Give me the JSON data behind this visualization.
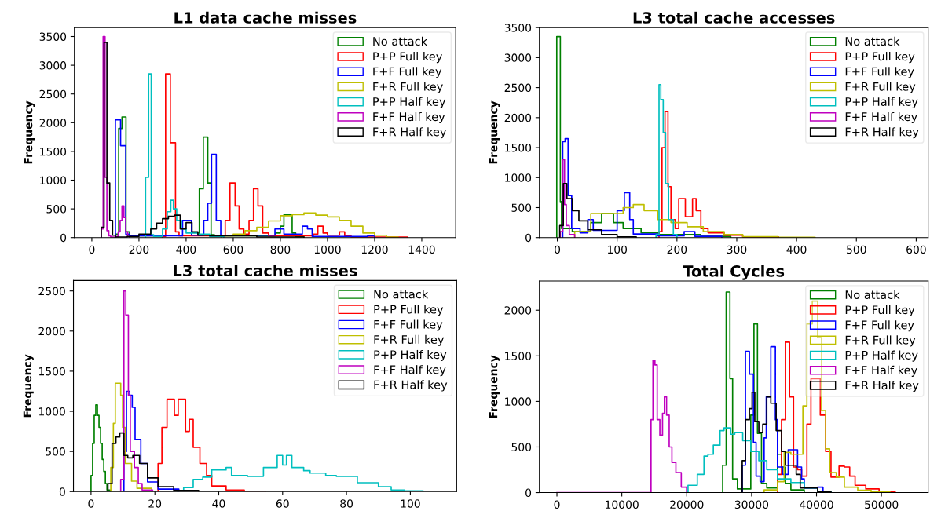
{
  "chart_data": [
    {
      "type": "step",
      "title": "L1 data cache misses",
      "ylabel": "Frequency",
      "xlim": [
        -74,
        1544
      ],
      "ylim": [
        0,
        3655
      ],
      "xticks": [
        0,
        200,
        400,
        600,
        800,
        1000,
        1200,
        1400
      ],
      "yticks": [
        0,
        500,
        1000,
        1500,
        2000,
        2500,
        3000,
        3500
      ],
      "legend": "top right",
      "series": [
        {
          "name": "No attack",
          "color": "#008000",
          "x": [
            100,
            100,
            114,
            128,
            145,
            160,
            300,
            456,
            473,
            492,
            506,
            520,
            780,
            800,
            815,
            850,
            865,
            900
          ],
          "values": [
            0,
            60,
            1900,
            2100,
            100,
            30,
            40,
            850,
            1750,
            950,
            50,
            30,
            80,
            200,
            400,
            80,
            20,
            0
          ]
        },
        {
          "name": "P+P Full key",
          "color": "#ff0000",
          "x": [
            300,
            300,
            313,
            333,
            355,
            370,
            566,
            586,
            608,
            625,
            645,
            667,
            686,
            705,
            725,
            750,
            940,
            959,
            981,
            1000,
            1051,
            1073,
            1100,
            1340
          ],
          "values": [
            0,
            20,
            2850,
            1650,
            100,
            30,
            300,
            950,
            550,
            150,
            60,
            300,
            850,
            550,
            80,
            30,
            60,
            200,
            80,
            40,
            100,
            30,
            10,
            0
          ]
        },
        {
          "name": "F+F Full key",
          "color": "#0000ff",
          "x": [
            100,
            100,
            122,
            144,
            160,
            385,
            423,
            475,
            492,
            508,
            528,
            547,
            777,
            815,
            893,
            915,
            935,
            1170,
            1200
          ],
          "values": [
            0,
            2050,
            1600,
            60,
            30,
            300,
            40,
            300,
            600,
            1450,
            300,
            40,
            150,
            60,
            200,
            150,
            20,
            30,
            0
          ]
        },
        {
          "name": "F+R Full key",
          "color": "#bfbf00",
          "x": [
            550,
            550,
            600,
            650,
            700,
            750,
            800,
            850,
            900,
            950,
            1000,
            1050,
            1100,
            1150,
            1200,
            1250,
            1300
          ],
          "values": [
            0,
            30,
            60,
            120,
            180,
            290,
            380,
            400,
            430,
            390,
            360,
            300,
            200,
            80,
            40,
            10,
            0
          ]
        },
        {
          "name": "P+P Half key",
          "color": "#00bfbf",
          "x": [
            228,
            228,
            241,
            252,
            262,
            300,
            320,
            335,
            346,
            360,
            380,
            400,
            450,
            500,
            560
          ],
          "values": [
            0,
            1050,
            2850,
            50,
            20,
            150,
            450,
            650,
            500,
            300,
            150,
            80,
            60,
            20,
            0
          ]
        },
        {
          "name": "F+F Half key",
          "color": "#bf00bf",
          "x": [
            40,
            40,
            48,
            56,
            64,
            72,
            80,
            88,
            96,
            104,
            112,
            120,
            128,
            136,
            144,
            152,
            160
          ],
          "values": [
            0,
            150,
            3500,
            1050,
            120,
            30,
            10,
            10,
            10,
            20,
            100,
            300,
            550,
            350,
            100,
            20,
            0
          ]
        },
        {
          "name": "F+R Half key",
          "color": "#000000",
          "x": [
            40,
            40,
            52,
            64,
            76,
            88,
            100,
            150,
            200,
            250,
            275,
            300,
            325,
            350,
            375,
            400,
            425,
            450,
            500,
            700,
            900
          ],
          "values": [
            0,
            180,
            3400,
            950,
            300,
            40,
            10,
            20,
            60,
            150,
            250,
            330,
            370,
            390,
            150,
            260,
            100,
            40,
            30,
            10,
            0
          ]
        }
      ]
    },
    {
      "type": "step",
      "title": "L3 total cache accesses",
      "ylabel": "Frequency",
      "xlim": [
        -30,
        620
      ],
      "ylim": [
        0,
        3500
      ],
      "xticks": [
        0,
        100,
        200,
        300,
        400,
        500,
        600
      ],
      "yticks": [
        0,
        500,
        1000,
        1500,
        2000,
        2500,
        3000,
        3500
      ],
      "legend": "top right",
      "series": [
        {
          "name": "No attack",
          "color": "#008000",
          "x": [
            -1,
            -1,
            5,
            7,
            25,
            56,
            74,
            94,
            110,
            140,
            170,
            240,
            290
          ],
          "values": [
            0,
            3350,
            600,
            150,
            100,
            250,
            400,
            250,
            150,
            80,
            50,
            20,
            0
          ]
        },
        {
          "name": "P+P Full key",
          "color": "#ff0000",
          "x": [
            170,
            170,
            175,
            180,
            185,
            190,
            197,
            203,
            214,
            226,
            232,
            240,
            252,
            279,
            310,
            370
          ],
          "values": [
            0,
            100,
            1500,
            2100,
            850,
            300,
            150,
            650,
            350,
            650,
            450,
            150,
            80,
            40,
            10,
            0
          ]
        },
        {
          "name": "F+F Full key",
          "color": "#0000ff",
          "x": [
            9,
            9,
            13,
            18,
            24,
            38,
            51,
            60,
            100,
            112,
            121,
            127,
            168,
            212,
            230,
            275
          ],
          "values": [
            0,
            1600,
            1650,
            700,
            150,
            80,
            300,
            120,
            450,
            750,
            300,
            60,
            30,
            100,
            20,
            0
          ]
        },
        {
          "name": "F+R Full key",
          "color": "#bfbf00",
          "x": [
            29,
            29,
            56,
            78,
            110,
            127,
            145,
            168,
            190,
            217,
            244,
            279,
            310,
            369,
            431
          ],
          "values": [
            0,
            100,
            400,
            400,
            500,
            550,
            450,
            300,
            250,
            180,
            100,
            50,
            15,
            5,
            0
          ]
        },
        {
          "name": "P+P Half key",
          "color": "#00bfbf",
          "x": [
            165,
            165,
            170,
            173,
            177,
            181,
            186,
            194,
            200
          ],
          "values": [
            0,
            50,
            2550,
            2300,
            1750,
            900,
            300,
            50,
            0
          ]
        },
        {
          "name": "F+F Half key",
          "color": "#bf00bf",
          "x": [
            5,
            5,
            9,
            12,
            15,
            20,
            29
          ],
          "values": [
            0,
            100,
            1300,
            550,
            200,
            50,
            0
          ]
        },
        {
          "name": "F+R Half key",
          "color": "#000000",
          "x": [
            4,
            4,
            10,
            16,
            25,
            36,
            51,
            74,
            100,
            132
          ],
          "values": [
            0,
            200,
            900,
            650,
            450,
            280,
            130,
            50,
            10,
            0
          ]
        }
      ]
    },
    {
      "type": "step",
      "title": "L3 total cache misses",
      "ylabel": "Frequency",
      "xlim": [
        -5.5,
        114.5
      ],
      "ylim": [
        0,
        2630
      ],
      "xticks": [
        0,
        20,
        40,
        60,
        80,
        100
      ],
      "yticks": [
        0,
        500,
        1000,
        1500,
        2000,
        2500
      ],
      "legend": "top right",
      "series": [
        {
          "name": "No attack",
          "color": "#008000",
          "x": [
            0,
            0,
            0.5,
            1,
            1.5,
            2,
            2.5,
            3,
            3.5,
            4,
            4.5,
            5,
            6
          ],
          "values": [
            0,
            200,
            600,
            950,
            1080,
            950,
            800,
            600,
            400,
            250,
            100,
            20,
            0
          ]
        },
        {
          "name": "P+P Full key",
          "color": "#ff0000",
          "x": [
            21,
            21,
            22.2,
            23.8,
            26.1,
            27.3,
            29.6,
            30.8,
            32,
            34.1,
            36.2,
            37.8,
            42.3,
            48,
            54.6
          ],
          "values": [
            0,
            350,
            800,
            1150,
            950,
            1150,
            750,
            900,
            550,
            350,
            200,
            70,
            20,
            5,
            0
          ]
        },
        {
          "name": "F+F Full key",
          "color": "#0000ff",
          "x": [
            10.3,
            10.3,
            11.1,
            12.1,
            12.9,
            13.8,
            14.8,
            15.6,
            17.7,
            21,
            27.5
          ],
          "values": [
            0,
            500,
            1250,
            1200,
            1050,
            650,
            650,
            350,
            120,
            30,
            0
          ]
        },
        {
          "name": "F+R Full key",
          "color": "#bfbf00",
          "x": [
            6.2,
            6.2,
            7,
            7.6,
            8.5,
            9.3,
            9.9,
            10.7,
            12.7,
            14.4,
            19
          ],
          "values": [
            0,
            300,
            850,
            1350,
            1350,
            1200,
            800,
            350,
            130,
            40,
            0
          ]
        },
        {
          "name": "P+P Half key",
          "color": "#00bfbf",
          "x": [
            27,
            27,
            29,
            32,
            35,
            37.8,
            42.3,
            44,
            49,
            54,
            58.3,
            60,
            61.2,
            62.9,
            66.6,
            68.6,
            73.5,
            76.8,
            83.4,
            90,
            94,
            98.2,
            104
          ],
          "values": [
            0,
            10,
            50,
            150,
            180,
            270,
            300,
            200,
            190,
            300,
            450,
            330,
            450,
            300,
            260,
            230,
            200,
            190,
            110,
            60,
            20,
            10,
            0
          ]
        },
        {
          "name": "F+F Half key",
          "color": "#bf00bf",
          "x": [
            9.3,
            9.3,
            10.3,
            10.9,
            11.7,
            12.3,
            13.6,
            14.8,
            16,
            19.3
          ],
          "values": [
            0,
            150,
            2500,
            2200,
            1200,
            500,
            300,
            100,
            20,
            0
          ]
        },
        {
          "name": "F+R Half key",
          "color": "#000000",
          "x": [
            5.3,
            5.3,
            6.6,
            7.8,
            9,
            10.3,
            11.5,
            13.1,
            15.2,
            17.7,
            21,
            25.9,
            33.7
          ],
          "values": [
            0,
            100,
            600,
            680,
            730,
            450,
            420,
            450,
            350,
            170,
            60,
            15,
            0
          ]
        }
      ]
    },
    {
      "type": "step",
      "title": "Total Cycles",
      "ylabel": "Frequency",
      "xlim": [
        -2700,
        57200
      ],
      "ylim": [
        0,
        2320
      ],
      "xticks": [
        0,
        10000,
        20000,
        30000,
        40000,
        50000
      ],
      "yticks": [
        0,
        500,
        1000,
        1500,
        2000
      ],
      "legend": "top right",
      "series": [
        {
          "name": "No attack",
          "color": "#008000",
          "x": [
            25540,
            25540,
            26080,
            26660,
            27070,
            27810,
            29870,
            30360,
            30900,
            31520,
            32340,
            33990,
            34610,
            35230,
            36050,
            38110
          ],
          "values": [
            0,
            300,
            2200,
            1250,
            150,
            40,
            850,
            1850,
            650,
            100,
            50,
            420,
            280,
            100,
            30,
            0
          ]
        },
        {
          "name": "P+P Full key",
          "color": "#ff0000",
          "x": [
            34000,
            34000,
            34610,
            35230,
            35840,
            36460,
            37080,
            37700,
            38520,
            39140,
            39760,
            40580,
            41410,
            42230,
            43470,
            44290,
            45110,
            45940,
            47590,
            49640,
            52120
          ],
          "values": [
            0,
            200,
            800,
            1650,
            1050,
            280,
            250,
            180,
            750,
            1250,
            1250,
            850,
            450,
            170,
            290,
            280,
            180,
            80,
            40,
            10,
            0
          ]
        },
        {
          "name": "F+F Full key",
          "color": "#0000ff",
          "x": [
            28550,
            28550,
            29050,
            29660,
            30280,
            30690,
            31310,
            31930,
            32260,
            32960,
            33660,
            33990,
            34810,
            35640,
            37080,
            37700,
            38110,
            40170,
            41000
          ],
          "values": [
            0,
            300,
            1550,
            1300,
            550,
            180,
            120,
            600,
            1050,
            1600,
            800,
            280,
            200,
            470,
            280,
            150,
            50,
            60,
            0
          ]
        },
        {
          "name": "F+R Full key",
          "color": "#bfbf00",
          "x": [
            31930,
            31930,
            34000,
            35020,
            36050,
            37080,
            37900,
            38520,
            39350,
            40170,
            40790,
            41410,
            42020,
            43050,
            44290,
            46350,
            48410,
            51290
          ],
          "values": [
            0,
            30,
            120,
            440,
            420,
            420,
            950,
            1850,
            2100,
            1700,
            900,
            480,
            220,
            170,
            60,
            25,
            10,
            0
          ]
        },
        {
          "name": "P+P Half key",
          "color": "#00bfbf",
          "x": [
            20200,
            20200,
            21630,
            22660,
            23280,
            24100,
            25130,
            25750,
            26780,
            27400,
            28630,
            29870,
            31110,
            32340,
            33990,
            36050,
            38110,
            40170,
            42230
          ],
          "values": [
            0,
            80,
            200,
            400,
            420,
            520,
            680,
            710,
            640,
            660,
            570,
            450,
            350,
            250,
            150,
            110,
            50,
            15,
            0
          ]
        },
        {
          "name": "F+F Half key",
          "color": "#bf00bf",
          "x": [
            0,
            14500,
            14800,
            15100,
            15450,
            15860,
            16270,
            16560,
            16890,
            17300,
            17720,
            18330,
            19160,
            19980
          ],
          "values": [
            0,
            800,
            1450,
            1400,
            800,
            630,
            870,
            1050,
            850,
            500,
            330,
            220,
            60,
            0
          ]
        },
        {
          "name": "F+R Half key",
          "color": "#000000",
          "x": [
            28550,
            28550,
            29050,
            29660,
            30070,
            30490,
            31110,
            31720,
            32340,
            32960,
            33780,
            34610,
            35230,
            35640,
            36870,
            37490,
            40170,
            42230
          ],
          "values": [
            0,
            350,
            800,
            920,
            1100,
            780,
            660,
            750,
            1050,
            980,
            680,
            450,
            300,
            300,
            200,
            50,
            10,
            0
          ]
        }
      ]
    }
  ]
}
